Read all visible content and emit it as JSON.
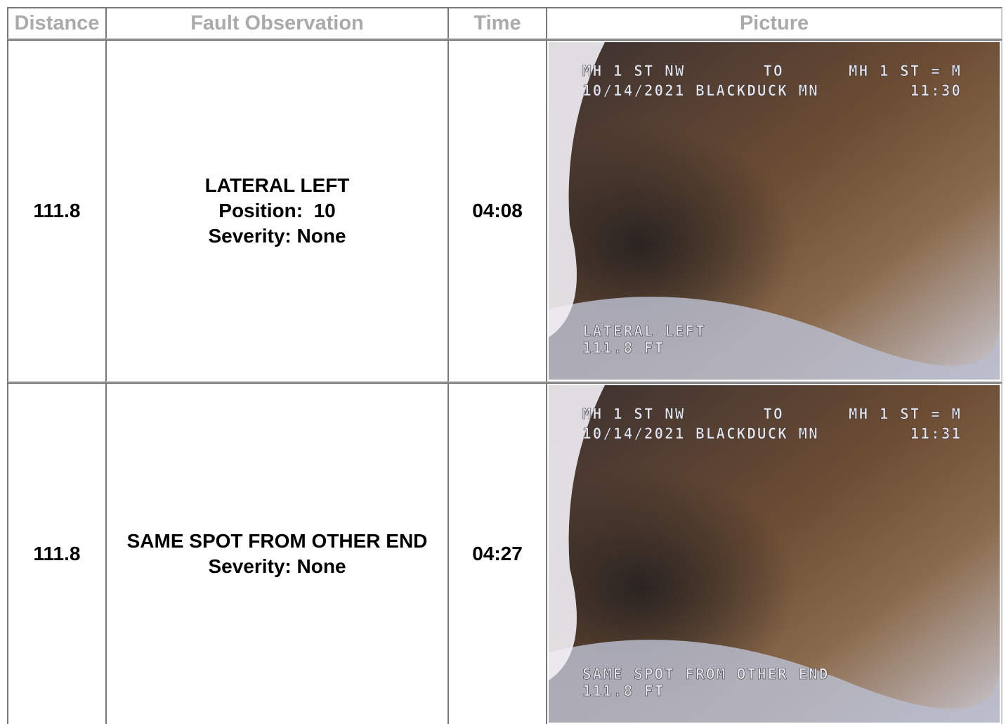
{
  "table": {
    "header": [
      "Distance",
      "Fault Observation",
      "Time",
      "Picture"
    ],
    "rows": [
      {
        "distance": "111.8",
        "observation": [
          "LATERAL LEFT",
          "Position:  10",
          "Severity: None"
        ],
        "time": "04:08",
        "picture": {
          "from": "MH 1 ST NW",
          "to_label": "TO",
          "to": "MH 1 ST = M",
          "date_place": "10/14/2021 BLACKDUCK MN",
          "clock": "11:30",
          "caption": "LATERAL LEFT",
          "footage": "111.8 FT"
        }
      },
      {
        "distance": "111.8",
        "observation": [
          "SAME SPOT FROM OTHER END",
          "Severity: None"
        ],
        "time": "04:27",
        "picture": {
          "from": "MH 1 ST NW",
          "to_label": "TO",
          "to": "MH 1 ST = M",
          "date_place": "10/14/2021 BLACKDUCK MN",
          "clock": "11:31",
          "caption": "SAME SPOT FROM OTHER END",
          "footage": "111.8 FT"
        }
      }
    ]
  }
}
